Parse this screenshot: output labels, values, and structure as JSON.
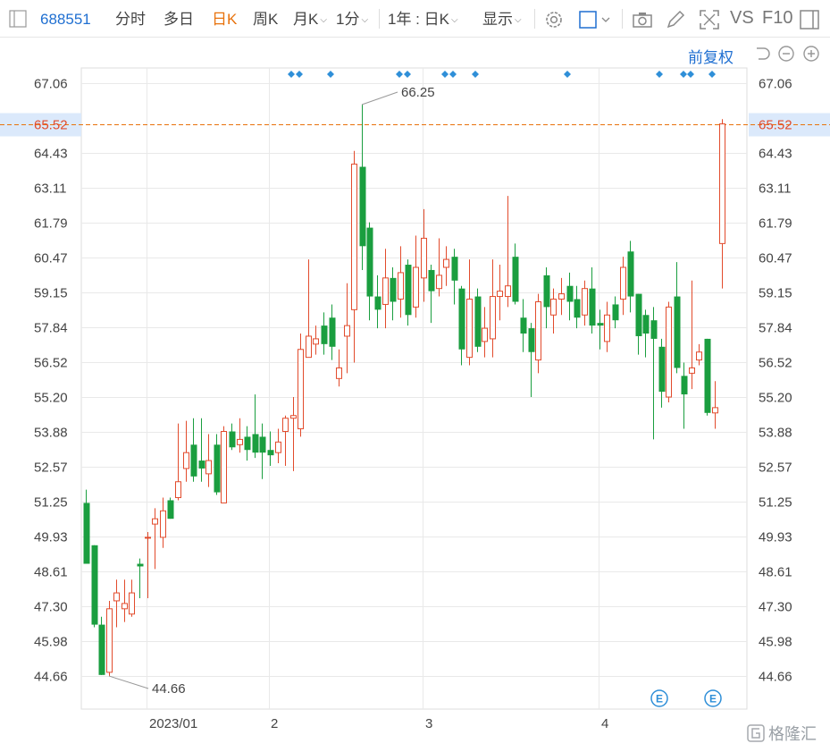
{
  "toolbar": {
    "stock_code": "688551",
    "tabs": [
      {
        "label": "分时",
        "active": false
      },
      {
        "label": "多日",
        "active": false
      },
      {
        "label": "日K",
        "active": true
      },
      {
        "label": "周K",
        "active": false
      },
      {
        "label": "月K",
        "active": false
      },
      {
        "label": "1分",
        "active": false
      }
    ],
    "range_label": "1年 : 日K",
    "display_label": "显示",
    "vs_label": "VS",
    "f10_label": "F10"
  },
  "adjust_label": "前复权",
  "colors": {
    "up": "#e24b2c",
    "down": "#1a9e3f",
    "accent": "#1f6fd1",
    "current_line": "#e8720c",
    "grid": "#e9e9e9",
    "event_marker": "#2f8fd8"
  },
  "icons": [
    "panel-toggle-icon",
    "settings-icon",
    "layout-box-icon",
    "camera-icon",
    "pen-icon",
    "fullscreen-icon",
    "sidebar-icon",
    "undo-icon",
    "zoom-out-icon",
    "zoom-in-icon"
  ],
  "chart_data": {
    "type": "candlestick",
    "y_ticks": [
      "67.06",
      "65.52",
      "64.43",
      "63.11",
      "61.79",
      "60.47",
      "59.15",
      "57.84",
      "56.52",
      "55.20",
      "53.88",
      "52.57",
      "51.25",
      "49.93",
      "48.61",
      "47.30",
      "45.98",
      "44.66"
    ],
    "x_ticks": [
      "2023/01",
      "2",
      "3",
      "4"
    ],
    "ylim": [
      43.8,
      68.4
    ],
    "current_price": "65.52",
    "high_label": "66.25",
    "low_label": "44.66",
    "event_badges": [
      "E",
      "E"
    ],
    "grid": true,
    "candles": [
      {
        "o": 51.2,
        "c": 48.9,
        "h": 51.7,
        "l": 48.9
      },
      {
        "o": 49.6,
        "c": 46.6,
        "h": 49.6,
        "l": 46.5
      },
      {
        "o": 46.6,
        "c": 44.7,
        "h": 46.9,
        "l": 44.7
      },
      {
        "o": 44.8,
        "c": 47.2,
        "h": 47.5,
        "l": 44.66
      },
      {
        "o": 47.5,
        "c": 47.8,
        "h": 48.3,
        "l": 46.5
      },
      {
        "o": 47.2,
        "c": 47.4,
        "h": 48.3,
        "l": 46.7
      },
      {
        "o": 47.0,
        "c": 47.8,
        "h": 48.3,
        "l": 46.9
      },
      {
        "o": 48.9,
        "c": 48.8,
        "h": 49.1,
        "l": 47.6
      },
      {
        "o": 49.9,
        "c": 49.9,
        "h": 50.1,
        "l": 47.6
      },
      {
        "o": 50.4,
        "c": 50.6,
        "h": 51.0,
        "l": 48.7
      },
      {
        "o": 49.9,
        "c": 50.9,
        "h": 51.4,
        "l": 49.5
      },
      {
        "o": 51.3,
        "c": 50.6,
        "h": 51.4,
        "l": 50.6
      },
      {
        "o": 51.4,
        "c": 52.0,
        "h": 54.2,
        "l": 51.3
      },
      {
        "o": 52.5,
        "c": 53.1,
        "h": 54.3,
        "l": 52.0
      },
      {
        "o": 53.4,
        "c": 52.2,
        "h": 54.4,
        "l": 52.0
      },
      {
        "o": 52.8,
        "c": 52.5,
        "h": 54.4,
        "l": 52.0
      },
      {
        "o": 52.3,
        "c": 52.8,
        "h": 53.8,
        "l": 51.8
      },
      {
        "o": 53.4,
        "c": 51.6,
        "h": 53.8,
        "l": 51.5
      },
      {
        "o": 51.2,
        "c": 53.9,
        "h": 54.1,
        "l": 51.2
      },
      {
        "o": 53.9,
        "c": 53.3,
        "h": 54.2,
        "l": 53.2
      },
      {
        "o": 53.4,
        "c": 53.6,
        "h": 54.4,
        "l": 53.1
      },
      {
        "o": 53.7,
        "c": 53.2,
        "h": 54.1,
        "l": 52.8
      },
      {
        "o": 53.8,
        "c": 53.1,
        "h": 55.3,
        "l": 52.9
      },
      {
        "o": 53.7,
        "c": 53.1,
        "h": 54.2,
        "l": 52.1
      },
      {
        "o": 53.2,
        "c": 53.0,
        "h": 53.9,
        "l": 52.6
      },
      {
        "o": 53.1,
        "c": 53.5,
        "h": 54.0,
        "l": 52.7
      },
      {
        "o": 53.9,
        "c": 54.4,
        "h": 54.5,
        "l": 52.6
      },
      {
        "o": 54.4,
        "c": 54.5,
        "h": 55.2,
        "l": 52.4
      },
      {
        "o": 54.0,
        "c": 57.0,
        "h": 57.6,
        "l": 53.7
      },
      {
        "o": 56.7,
        "c": 57.5,
        "h": 60.4,
        "l": 56.7
      },
      {
        "o": 57.2,
        "c": 57.4,
        "h": 57.9,
        "l": 56.8
      },
      {
        "o": 57.9,
        "c": 57.2,
        "h": 58.4,
        "l": 56.8
      },
      {
        "o": 58.2,
        "c": 57.1,
        "h": 58.7,
        "l": 56.6
      },
      {
        "o": 55.9,
        "c": 56.3,
        "h": 57.0,
        "l": 55.6
      },
      {
        "o": 57.5,
        "c": 57.9,
        "h": 59.5,
        "l": 56.1
      },
      {
        "o": 58.5,
        "c": 64.0,
        "h": 64.5,
        "l": 56.5
      },
      {
        "o": 63.9,
        "c": 60.9,
        "h": 66.25,
        "l": 60.0
      },
      {
        "o": 61.6,
        "c": 59.0,
        "h": 61.8,
        "l": 58.1
      },
      {
        "o": 59.0,
        "c": 58.5,
        "h": 59.8,
        "l": 57.8
      },
      {
        "o": 58.7,
        "c": 59.7,
        "h": 60.8,
        "l": 57.8
      },
      {
        "o": 59.7,
        "c": 58.8,
        "h": 60.1,
        "l": 58.1
      },
      {
        "o": 58.9,
        "c": 59.9,
        "h": 60.9,
        "l": 58.2
      },
      {
        "o": 60.2,
        "c": 58.3,
        "h": 60.4,
        "l": 57.9
      },
      {
        "o": 58.6,
        "c": 60.1,
        "h": 61.3,
        "l": 58.2
      },
      {
        "o": 59.7,
        "c": 61.2,
        "h": 62.3,
        "l": 58.8
      },
      {
        "o": 60.0,
        "c": 59.2,
        "h": 60.2,
        "l": 58.0
      },
      {
        "o": 59.3,
        "c": 59.8,
        "h": 61.2,
        "l": 59.0
      },
      {
        "o": 60.1,
        "c": 60.4,
        "h": 60.9,
        "l": 59.4
      },
      {
        "o": 60.5,
        "c": 59.6,
        "h": 60.8,
        "l": 58.7
      },
      {
        "o": 59.3,
        "c": 57.0,
        "h": 59.4,
        "l": 56.4
      },
      {
        "o": 56.7,
        "c": 58.9,
        "h": 60.4,
        "l": 56.4
      },
      {
        "o": 59.0,
        "c": 57.1,
        "h": 59.3,
        "l": 56.9
      },
      {
        "o": 57.3,
        "c": 57.8,
        "h": 58.6,
        "l": 56.7
      },
      {
        "o": 57.4,
        "c": 59.0,
        "h": 60.4,
        "l": 56.7
      },
      {
        "o": 59.0,
        "c": 59.2,
        "h": 60.2,
        "l": 58.1
      },
      {
        "o": 59.0,
        "c": 59.4,
        "h": 62.8,
        "l": 58.6
      },
      {
        "o": 60.5,
        "c": 58.8,
        "h": 61.0,
        "l": 58.7
      },
      {
        "o": 58.2,
        "c": 57.6,
        "h": 58.9,
        "l": 56.9
      },
      {
        "o": 57.8,
        "c": 56.9,
        "h": 58.0,
        "l": 55.2
      },
      {
        "o": 56.6,
        "c": 58.8,
        "h": 59.1,
        "l": 56.1
      },
      {
        "o": 59.8,
        "c": 58.6,
        "h": 60.1,
        "l": 57.8
      },
      {
        "o": 58.3,
        "c": 58.9,
        "h": 59.3,
        "l": 57.6
      },
      {
        "o": 58.9,
        "c": 59.1,
        "h": 59.7,
        "l": 58.3
      },
      {
        "o": 59.4,
        "c": 58.8,
        "h": 59.9,
        "l": 58.1
      },
      {
        "o": 58.9,
        "c": 58.2,
        "h": 59.4,
        "l": 57.8
      },
      {
        "o": 58.3,
        "c": 59.3,
        "h": 59.6,
        "l": 57.9
      },
      {
        "o": 59.3,
        "c": 57.9,
        "h": 60.1,
        "l": 57.6
      },
      {
        "o": 58.0,
        "c": 57.9,
        "h": 58.5,
        "l": 57.0
      },
      {
        "o": 57.3,
        "c": 58.3,
        "h": 58.8,
        "l": 56.9
      },
      {
        "o": 58.7,
        "c": 58.1,
        "h": 59.0,
        "l": 57.8
      },
      {
        "o": 58.9,
        "c": 60.1,
        "h": 60.5,
        "l": 58.3
      },
      {
        "o": 60.7,
        "c": 59.0,
        "h": 61.1,
        "l": 58.4
      },
      {
        "o": 59.1,
        "c": 57.5,
        "h": 59.1,
        "l": 56.8
      },
      {
        "o": 58.3,
        "c": 57.6,
        "h": 58.5,
        "l": 56.7
      },
      {
        "o": 58.1,
        "c": 57.4,
        "h": 58.6,
        "l": 53.6
      },
      {
        "o": 57.1,
        "c": 55.4,
        "h": 57.4,
        "l": 54.8
      },
      {
        "o": 55.2,
        "c": 58.6,
        "h": 58.8,
        "l": 55.0
      },
      {
        "o": 59.0,
        "c": 56.3,
        "h": 60.3,
        "l": 56.1
      },
      {
        "o": 56.0,
        "c": 55.3,
        "h": 56.5,
        "l": 54.0
      },
      {
        "o": 56.1,
        "c": 56.3,
        "h": 59.6,
        "l": 55.5
      },
      {
        "o": 56.6,
        "c": 56.9,
        "h": 57.2,
        "l": 56.4
      },
      {
        "o": 57.4,
        "c": 54.6,
        "h": 57.4,
        "l": 54.5
      },
      {
        "o": 54.6,
        "c": 54.8,
        "h": 55.8,
        "l": 54.0
      },
      {
        "o": 61.0,
        "c": 65.52,
        "h": 65.7,
        "l": 59.3
      }
    ]
  }
}
